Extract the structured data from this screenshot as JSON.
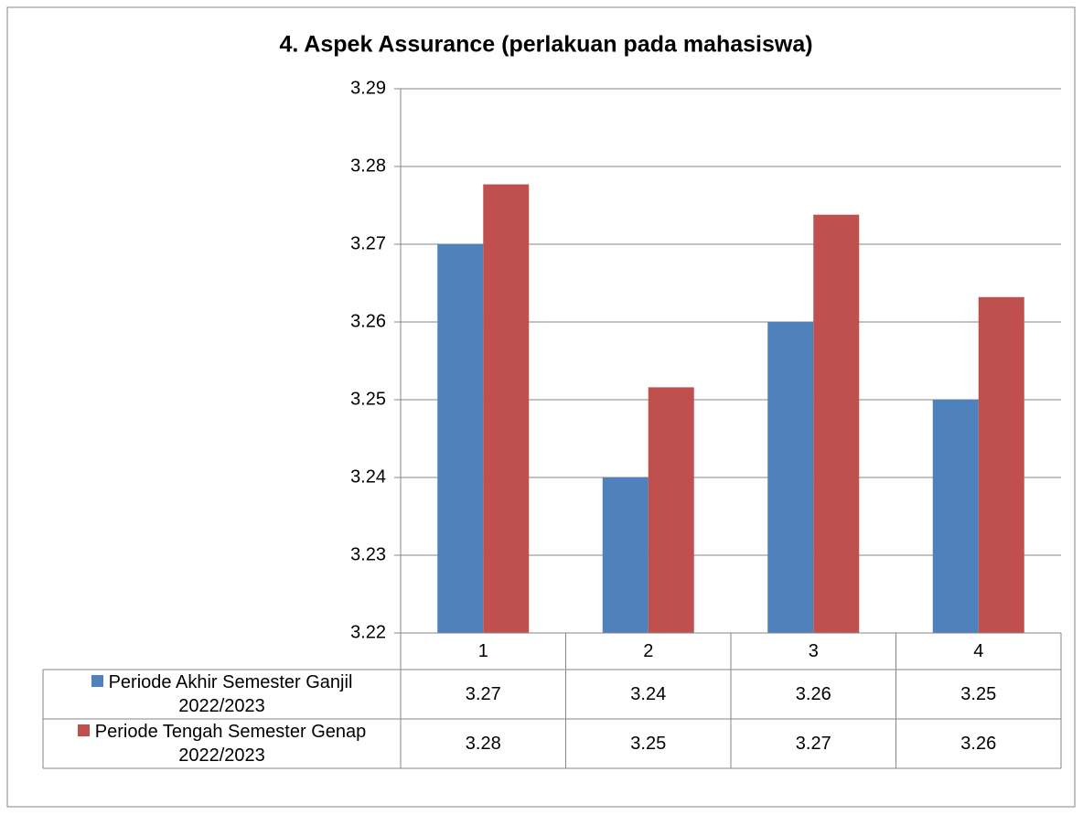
{
  "chart_data": {
    "type": "bar",
    "title": "4. Aspek Assurance (perlakuan pada mahasiswa)",
    "categories": [
      "1",
      "2",
      "3",
      "4"
    ],
    "series": [
      {
        "name": "Periode Akhir Semester Ganjil 2022/2023",
        "color": "#4f81bd",
        "values": [
          3.27,
          3.24,
          3.26,
          3.25
        ]
      },
      {
        "name": "Periode Tengah Semester Genap 2022/2023",
        "color": "#c0504d",
        "values": [
          3.2777,
          3.2516,
          3.2738,
          3.2632
        ],
        "value_labels": [
          "3.28",
          "3.25",
          "3.27",
          "3.26"
        ]
      }
    ],
    "ylim": [
      3.22,
      3.29
    ],
    "yticks": [
      3.22,
      3.23,
      3.24,
      3.25,
      3.26,
      3.27,
      3.28,
      3.29
    ],
    "grid": true,
    "data_table": true
  }
}
